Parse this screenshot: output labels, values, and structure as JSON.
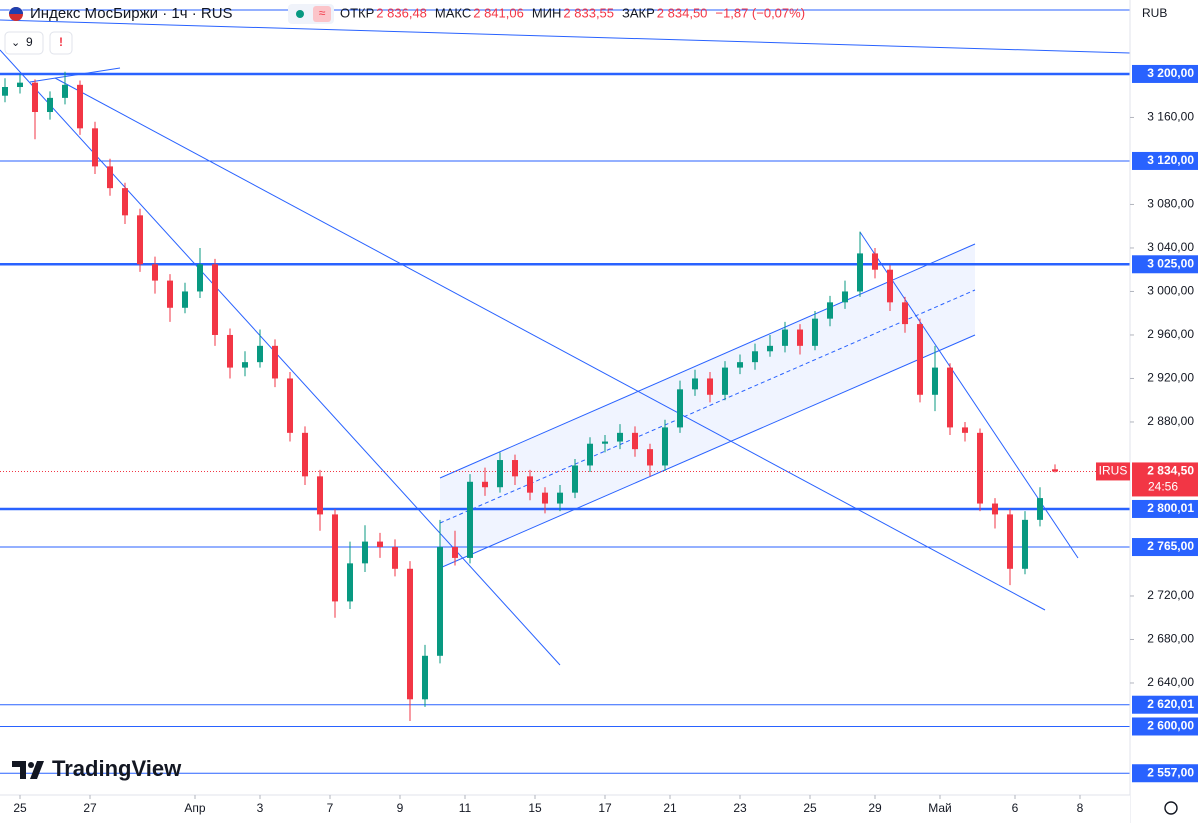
{
  "header": {
    "title": "Индекс МосБиржи · 1ч · RUS",
    "ohlc": [
      {
        "label": "ОТКР",
        "value": "2 836,48"
      },
      {
        "label": "МАКС",
        "value": "2 841,06"
      },
      {
        "label": "МИН",
        "value": "2 833,55"
      },
      {
        "label": "ЗАКР",
        "value": "2 834,50"
      }
    ],
    "change": "−1,87 (−0,07%)",
    "indicators": "9"
  },
  "logo": "TradingView",
  "chart_data": {
    "type": "candlestick",
    "currency": "RUB",
    "up_color": "#089981",
    "down_color": "#f23645",
    "xlim": [
      0,
      226
    ],
    "ylim": [
      2537,
      3268
    ],
    "xticks": [
      {
        "value": 4,
        "label": "25"
      },
      {
        "value": 18,
        "label": "27"
      },
      {
        "value": 39,
        "label": "Апр"
      },
      {
        "value": 52,
        "label": "3"
      },
      {
        "value": 66,
        "label": "7"
      },
      {
        "value": 80,
        "label": "9"
      },
      {
        "value": 93,
        "label": "11"
      },
      {
        "value": 107,
        "label": "15"
      },
      {
        "value": 121,
        "label": "17"
      },
      {
        "value": 134,
        "label": "21"
      },
      {
        "value": 148,
        "label": "23"
      },
      {
        "value": 162,
        "label": "25"
      },
      {
        "value": 175,
        "label": "29"
      },
      {
        "value": 188,
        "label": "Май"
      },
      {
        "value": 203,
        "label": "6"
      },
      {
        "value": 216,
        "label": "8"
      }
    ],
    "yticks": [
      {
        "value": 2640,
        "label": "2 640,00"
      },
      {
        "value": 2680,
        "label": "2 680,00"
      },
      {
        "value": 2720,
        "label": "2 720,00"
      },
      {
        "value": 2880,
        "label": "2 880,00"
      },
      {
        "value": 2920,
        "label": "2 920,00"
      },
      {
        "value": 2960,
        "label": "2 960,00"
      },
      {
        "value": 3000,
        "label": "3 000,00"
      },
      {
        "value": 3040,
        "label": "3 040,00"
      },
      {
        "value": 3080,
        "label": "3 080,00"
      },
      {
        "value": 3160,
        "label": "3 160,00"
      }
    ],
    "levels": [
      {
        "value": 3200,
        "label": "3 200,00",
        "bold": true
      },
      {
        "value": 3120,
        "label": "3 120,00",
        "bold": false
      },
      {
        "value": 3025,
        "label": "3 025,00",
        "bold": true
      },
      {
        "value": 2800.01,
        "label": "2 800,01",
        "bold": true
      },
      {
        "value": 2765,
        "label": "2 765,00",
        "bold": false
      },
      {
        "value": 2620.01,
        "label": "2 620,01",
        "bold": false
      },
      {
        "value": 2600,
        "label": "2 600,00",
        "bold": false
      },
      {
        "value": 2557,
        "label": "2 557,00",
        "bold": false
      }
    ],
    "last_price": {
      "value": 2834.5,
      "symbol": "IRUS",
      "label": "2 834,50",
      "countdown": "24:56"
    },
    "x": [
      1,
      4,
      7,
      10,
      13,
      16,
      19,
      22,
      25,
      28,
      31,
      34,
      37,
      40,
      43,
      46,
      49,
      52,
      55,
      58,
      61,
      64,
      67,
      70,
      73,
      76,
      79,
      82,
      85,
      88,
      91,
      94,
      97,
      100,
      103,
      106,
      109,
      112,
      115,
      118,
      121,
      124,
      127,
      130,
      133,
      136,
      139,
      142,
      145,
      148,
      151,
      154,
      157,
      160,
      163,
      166,
      169,
      172,
      175,
      178,
      181,
      184,
      187,
      190,
      193,
      196,
      199,
      202,
      205,
      208,
      211
    ],
    "open": [
      3180,
      3188,
      3192,
      3165,
      3178,
      3190,
      3150,
      3115,
      3095,
      3070,
      3025,
      3010,
      2985,
      3000,
      3025,
      2960,
      2930,
      2935,
      2950,
      2920,
      2870,
      2830,
      2795,
      2715,
      2750,
      2770,
      2765,
      2745,
      2625,
      2665,
      2765,
      2755,
      2825,
      2820,
      2845,
      2830,
      2815,
      2805,
      2815,
      2840,
      2860,
      2862,
      2870,
      2855,
      2840,
      2875,
      2910,
      2920,
      2905,
      2930,
      2935,
      2945,
      2950,
      2965,
      2950,
      2975,
      2990,
      3000,
      3035,
      3020,
      2990,
      2970,
      2905,
      2930,
      2875,
      2870,
      2805,
      2795,
      2745,
      2790,
      2836.48
    ],
    "high": [
      3196,
      3200,
      3195,
      3184,
      3202,
      3194,
      3156,
      3122,
      3100,
      3076,
      3032,
      3016,
      3008,
      3040,
      3030,
      2966,
      2945,
      2965,
      2956,
      2926,
      2876,
      2836,
      2800,
      2770,
      2785,
      2778,
      2772,
      2752,
      2675,
      2790,
      2780,
      2832,
      2838,
      2852,
      2850,
      2836,
      2820,
      2822,
      2846,
      2866,
      2868,
      2878,
      2876,
      2860,
      2882,
      2918,
      2928,
      2926,
      2936,
      2942,
      2952,
      2960,
      2972,
      2970,
      2982,
      2996,
      3010,
      3055,
      3040,
      3024,
      2995,
      2975,
      2950,
      2934,
      2880,
      2874,
      2810,
      2800,
      2798,
      2820,
      2841.06
    ],
    "low": [
      3174,
      3182,
      3140,
      3158,
      3172,
      3144,
      3108,
      3088,
      3062,
      3018,
      2998,
      2972,
      2980,
      2994,
      2950,
      2920,
      2922,
      2930,
      2912,
      2862,
      2822,
      2780,
      2700,
      2708,
      2742,
      2755,
      2738,
      2605,
      2618,
      2658,
      2748,
      2750,
      2812,
      2815,
      2822,
      2808,
      2796,
      2798,
      2810,
      2834,
      2852,
      2855,
      2848,
      2830,
      2835,
      2870,
      2904,
      2898,
      2900,
      2924,
      2928,
      2940,
      2944,
      2942,
      2946,
      2968,
      2984,
      2995,
      3012,
      2982,
      2962,
      2898,
      2890,
      2868,
      2862,
      2798,
      2782,
      2730,
      2740,
      2784,
      2833.55
    ],
    "close": [
      3188,
      3192,
      3165,
      3178,
      3190,
      3150,
      3115,
      3095,
      3070,
      3025,
      3010,
      2985,
      3000,
      3025,
      2960,
      2930,
      2935,
      2950,
      2920,
      2870,
      2830,
      2795,
      2715,
      2750,
      2770,
      2765,
      2745,
      2625,
      2665,
      2765,
      2755,
      2825,
      2820,
      2845,
      2830,
      2815,
      2805,
      2815,
      2840,
      2860,
      2862,
      2870,
      2855,
      2840,
      2875,
      2910,
      2920,
      2905,
      2930,
      2935,
      2945,
      2950,
      2965,
      2950,
      2975,
      2990,
      3000,
      3035,
      3020,
      2990,
      2970,
      2905,
      2930,
      2875,
      2870,
      2805,
      2795,
      2745,
      2790,
      2810,
      2834.5
    ]
  }
}
